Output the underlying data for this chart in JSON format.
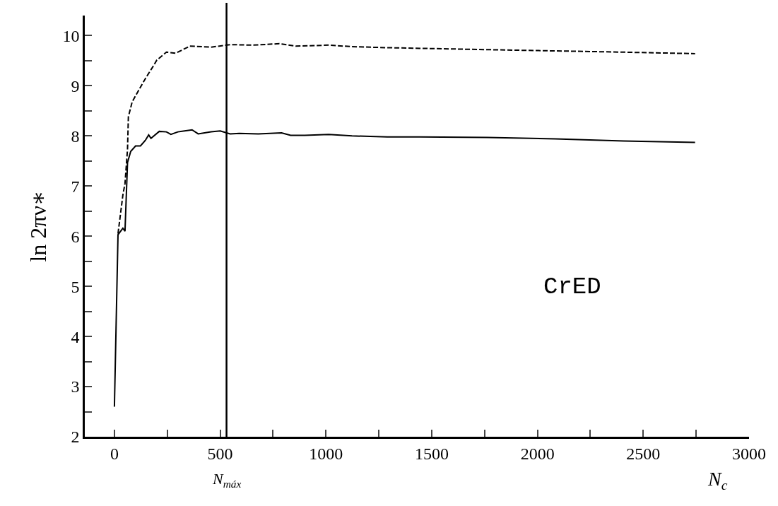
{
  "chart_data": {
    "type": "line",
    "xlabel": "N$_{c}$",
    "ylabel": "ln 2πν∗",
    "xlim": [
      -140,
      3000
    ],
    "ylim": [
      2,
      10.4
    ],
    "xticks": [
      0,
      {
        "value": 250,
        "label": null
      },
      500,
      {
        "value": 750,
        "label": null
      },
      1000,
      {
        "value": 1250,
        "label": null
      },
      1500,
      {
        "value": 1750,
        "label": null
      },
      2000,
      {
        "value": 2250,
        "label": null
      },
      2500,
      {
        "value": 2750,
        "label": null
      },
      3000
    ],
    "yticks": [
      2,
      {
        "value": 2.5,
        "label": null
      },
      3,
      {
        "value": 3.5,
        "label": null
      },
      4,
      {
        "value": 4.5,
        "label": null
      },
      5,
      {
        "value": 5.5,
        "label": null
      },
      6,
      {
        "value": 6.5,
        "label": null
      },
      7,
      {
        "value": 7.5,
        "label": null
      },
      8,
      {
        "value": 8.5,
        "label": null
      },
      9,
      {
        "value": 9.5,
        "label": null
      },
      10
    ],
    "grid": false,
    "series": [
      {
        "color": "#000000",
        "line_style": "solid",
        "x": [
          0,
          17,
          40,
          50,
          62,
          77,
          100,
          123,
          146,
          162,
          173,
          212,
          246,
          267,
          300,
          367,
          396,
          457,
          500,
          547,
          590,
          680,
          790,
          833,
          900,
          1013,
          1123,
          1290,
          1443,
          1763,
          2083,
          2407,
          2745
        ],
        "values": [
          2.6,
          6.03,
          6.16,
          6.1,
          7.47,
          7.69,
          7.8,
          7.8,
          7.91,
          8.02,
          7.95,
          8.09,
          8.08,
          8.03,
          8.08,
          8.12,
          8.04,
          8.08,
          8.1,
          8.04,
          8.05,
          8.04,
          8.06,
          8.01,
          8.01,
          8.03,
          8.0,
          7.98,
          7.98,
          7.97,
          7.94,
          7.9,
          7.87
        ]
      },
      {
        "color": "#000000",
        "line_style": "dashed",
        "x": [
          17,
          40,
          50,
          62,
          66,
          84,
          112,
          146,
          188,
          200,
          246,
          290,
          357,
          457,
          547,
          657,
          780,
          857,
          1013,
          1123,
          1280,
          1763,
          2407,
          2745
        ],
        "values": [
          6.05,
          6.82,
          7.05,
          7.74,
          8.38,
          8.68,
          8.89,
          9.14,
          9.42,
          9.51,
          9.67,
          9.65,
          9.79,
          9.77,
          9.82,
          9.81,
          9.84,
          9.79,
          9.81,
          9.78,
          9.76,
          9.72,
          9.67,
          9.64
        ]
      }
    ],
    "ref_lines": [
      {
        "axis": "x",
        "value": 530,
        "label": "N$_{máx}$",
        "color": "#000000",
        "line_style": "solid"
      }
    ],
    "annotations": [
      "CrED"
    ]
  }
}
